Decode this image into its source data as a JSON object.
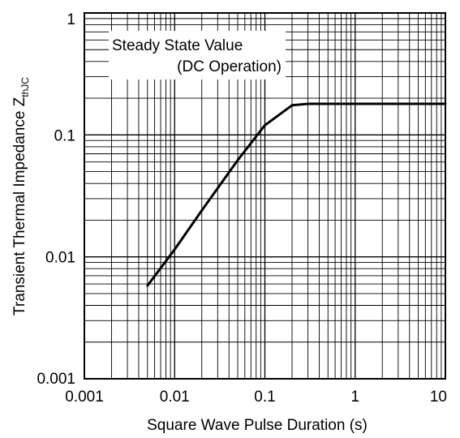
{
  "chart_data": {
    "type": "line",
    "xlabel": "Square Wave Pulse Duration (s)",
    "ylabel": "Transient Thermal Impedance Z",
    "ylabel_sub": "thJC",
    "x_scale": "log",
    "y_scale": "log",
    "xlim": [
      0.001,
      10
    ],
    "ylim": [
      0.001,
      1
    ],
    "grid": true,
    "x_tick_labels": [
      "0.001",
      "0.01",
      "0.1",
      "1",
      "10"
    ],
    "y_tick_labels": [
      "0.001",
      "0.01",
      "0.1",
      "1"
    ],
    "annotation": [
      "Steady State Value",
      "(DC Operation)"
    ],
    "series": [
      {
        "x": [
          0.005,
          0.01,
          0.02,
          0.05,
          0.1,
          0.2,
          0.3,
          1,
          10
        ],
        "y": [
          0.0058,
          0.0115,
          0.024,
          0.062,
          0.12,
          0.175,
          0.18,
          0.18,
          0.18
        ]
      }
    ]
  }
}
